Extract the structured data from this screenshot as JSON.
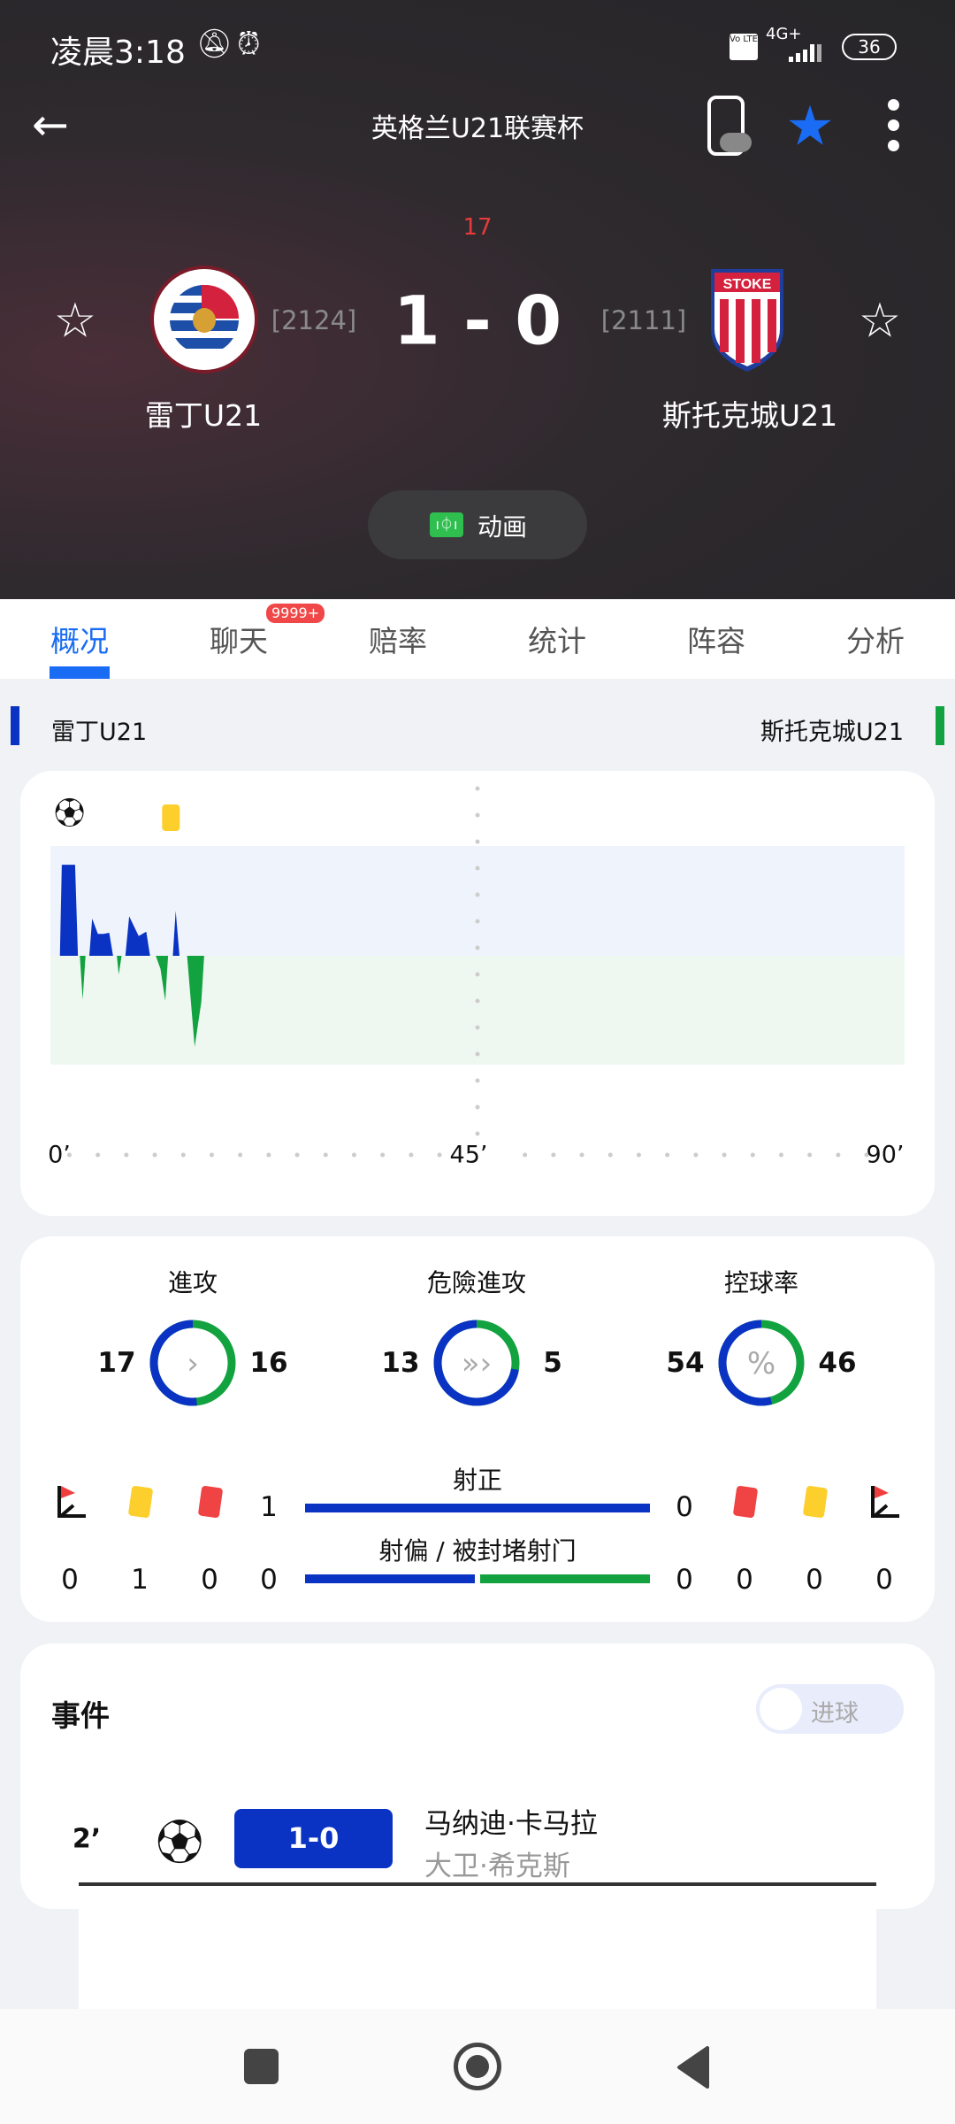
{
  "status_bar": {
    "time": "凌晨3:18",
    "battery": "36",
    "network": "4G+",
    "volte": "Vo LTE"
  },
  "header": {
    "title": "英格兰U21联赛杯",
    "minute": "17",
    "score": "1 - 0",
    "home": {
      "name": "雷丁U21",
      "rank": "[2124]",
      "logo_text": "READING FOOTBALL CLUB EST. 1871"
    },
    "away": {
      "name": "斯托克城U21",
      "rank": "[2111]",
      "logo_text": "STOKE CITY 1863 THE POTTERS"
    },
    "animation_label": "动画",
    "favorite_color": "#1a6cf5"
  },
  "tabs": [
    {
      "label": "概况",
      "active": true
    },
    {
      "label": "聊天",
      "badge": "9999+"
    },
    {
      "label": "赔率"
    },
    {
      "label": "统计"
    },
    {
      "label": "阵容"
    },
    {
      "label": "分析"
    }
  ],
  "teams_bar": {
    "home": "雷丁U21",
    "away": "斯托克城U21",
    "home_color": "#0a33c4",
    "away_color": "#12a23f"
  },
  "chart_data": {
    "type": "area",
    "xlabel": "",
    "ylabel": "",
    "x_ticks": [
      "0’",
      "45’",
      "90’"
    ],
    "xlim": [
      0,
      90
    ],
    "ylim": [
      -1,
      1
    ],
    "series": [
      {
        "team": "home",
        "color": "#0a33c4"
      },
      {
        "team": "away",
        "color": "#12a23f"
      }
    ],
    "points": [
      [
        0,
        0
      ],
      [
        1,
        0
      ],
      [
        1.2,
        0.83
      ],
      [
        2.6,
        0.83
      ],
      [
        2.9,
        0
      ],
      [
        3.1,
        0
      ],
      [
        3.4,
        -0.4
      ],
      [
        3.7,
        0
      ],
      [
        4.1,
        0
      ],
      [
        4.4,
        0.34
      ],
      [
        5.0,
        0.2
      ],
      [
        5.6,
        0.2
      ],
      [
        6.2,
        0.21
      ],
      [
        6.6,
        0
      ],
      [
        7.0,
        0
      ],
      [
        7.2,
        -0.17
      ],
      [
        7.5,
        0
      ],
      [
        7.9,
        0
      ],
      [
        8.3,
        0.36
      ],
      [
        9.3,
        0.18
      ],
      [
        10.1,
        0.22
      ],
      [
        10.5,
        0
      ],
      [
        11.1,
        0
      ],
      [
        11.6,
        -0.12
      ],
      [
        12.1,
        -0.41
      ],
      [
        12.4,
        0
      ],
      [
        12.9,
        0
      ],
      [
        13.2,
        0.41
      ],
      [
        13.6,
        0
      ],
      [
        14.4,
        0
      ],
      [
        15.2,
        -0.83
      ],
      [
        15.9,
        -0.42
      ],
      [
        16.2,
        0
      ],
      [
        17,
        0
      ]
    ],
    "events": [
      {
        "minute": 2,
        "type": "goal"
      },
      {
        "minute": 12.7,
        "type": "yellow-card"
      }
    ]
  },
  "stats": {
    "donuts": [
      {
        "label": "進攻",
        "home": 17,
        "away": 16,
        "icon": "chevron"
      },
      {
        "label": "危險進攻",
        "home": 13,
        "away": 5,
        "icon": "triple-chevron"
      },
      {
        "label": "控球率",
        "home": 54,
        "away": 46,
        "icon": "percent"
      }
    ],
    "home_counts": {
      "corners": "0",
      "yellow": "1",
      "red": "0"
    },
    "away_counts": {
      "corners": "0",
      "yellow": "0",
      "red": "0"
    },
    "bars": [
      {
        "label": "射正",
        "home": "1",
        "away": "0"
      },
      {
        "label": "射偏 / 被封堵射门",
        "home": "0",
        "away": "0"
      }
    ]
  },
  "events": {
    "title": "事件",
    "toggle_label": "进球",
    "toggle_on": false,
    "items": [
      {
        "minute": "2’",
        "type": "goal",
        "score": "1-0",
        "player": "马纳迪·卡马拉",
        "assist": "大卫·希克斯"
      }
    ]
  }
}
